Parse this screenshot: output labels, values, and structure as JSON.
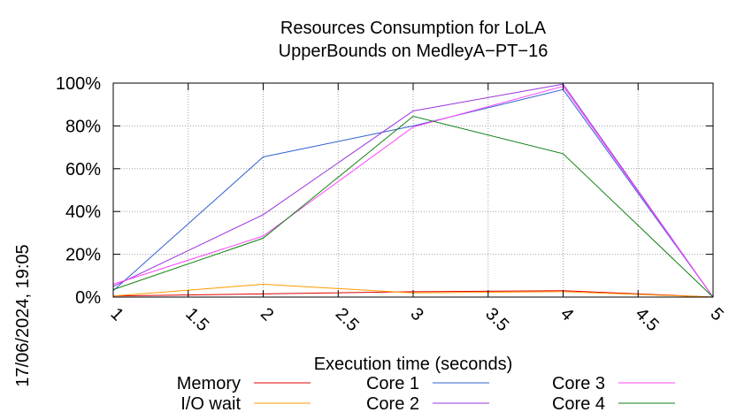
{
  "chart_data": {
    "type": "line",
    "title": [
      "Resources Consumption for LoLA",
      "UpperBounds on MedleyA−PT−16"
    ],
    "xlabel": "Execution time (seconds)",
    "ylabel": "",
    "timestamp": "17/06/2024, 19:05",
    "xlim": [
      1,
      5
    ],
    "ylim": [
      0,
      100
    ],
    "x_ticks": [
      "1",
      "1.5",
      "2",
      "2.5",
      "3",
      "3.5",
      "4",
      "4.5",
      "5"
    ],
    "y_ticks": [
      "0%",
      "20%",
      "40%",
      "60%",
      "80%",
      "100%"
    ],
    "grid": true,
    "legend_position": "bottom",
    "x": [
      1,
      2,
      3,
      4,
      5
    ],
    "series": [
      {
        "name": "Memory",
        "color": "#e00000",
        "values": [
          0.5,
          1.5,
          2.5,
          3,
          0
        ]
      },
      {
        "name": "I/O wait",
        "color": "#ff9900",
        "values": [
          0.5,
          6,
          2,
          2.5,
          0
        ]
      },
      {
        "name": "Core 1",
        "color": "#3060d0",
        "values": [
          3,
          65.5,
          80,
          97,
          0
        ]
      },
      {
        "name": "Core 2",
        "color": "#9933dd",
        "values": [
          5,
          38.5,
          87,
          99.5,
          0
        ]
      },
      {
        "name": "Core 3",
        "color": "#ff44ff",
        "values": [
          6,
          28.5,
          79.5,
          98.5,
          0
        ]
      },
      {
        "name": "Core 4",
        "color": "#108010",
        "values": [
          3.5,
          27.5,
          84.5,
          67,
          0
        ]
      }
    ]
  }
}
